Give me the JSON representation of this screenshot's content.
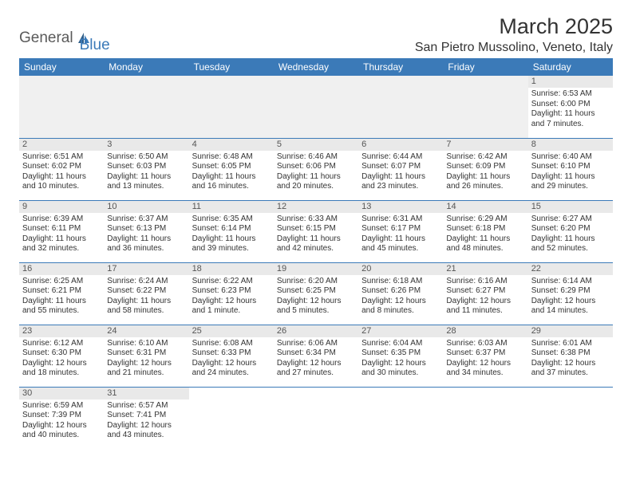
{
  "logo": {
    "text1": "General",
    "text2": "Blue"
  },
  "title": "March 2025",
  "location": "San Pietro Mussolino, Veneto, Italy",
  "colors": {
    "header_bg": "#3b7ab8",
    "header_text": "#ffffff",
    "daynum_bg": "#e9e9e9",
    "empty_bg": "#f0f0f0",
    "border": "#3b7ab8",
    "body_text": "#333333"
  },
  "weekdays": [
    "Sunday",
    "Monday",
    "Tuesday",
    "Wednesday",
    "Thursday",
    "Friday",
    "Saturday"
  ],
  "weeks": [
    [
      null,
      null,
      null,
      null,
      null,
      null,
      {
        "n": "1",
        "sr": "Sunrise: 6:53 AM",
        "ss": "Sunset: 6:00 PM",
        "dl": "Daylight: 11 hours and 7 minutes."
      }
    ],
    [
      {
        "n": "2",
        "sr": "Sunrise: 6:51 AM",
        "ss": "Sunset: 6:02 PM",
        "dl": "Daylight: 11 hours and 10 minutes."
      },
      {
        "n": "3",
        "sr": "Sunrise: 6:50 AM",
        "ss": "Sunset: 6:03 PM",
        "dl": "Daylight: 11 hours and 13 minutes."
      },
      {
        "n": "4",
        "sr": "Sunrise: 6:48 AM",
        "ss": "Sunset: 6:05 PM",
        "dl": "Daylight: 11 hours and 16 minutes."
      },
      {
        "n": "5",
        "sr": "Sunrise: 6:46 AM",
        "ss": "Sunset: 6:06 PM",
        "dl": "Daylight: 11 hours and 20 minutes."
      },
      {
        "n": "6",
        "sr": "Sunrise: 6:44 AM",
        "ss": "Sunset: 6:07 PM",
        "dl": "Daylight: 11 hours and 23 minutes."
      },
      {
        "n": "7",
        "sr": "Sunrise: 6:42 AM",
        "ss": "Sunset: 6:09 PM",
        "dl": "Daylight: 11 hours and 26 minutes."
      },
      {
        "n": "8",
        "sr": "Sunrise: 6:40 AM",
        "ss": "Sunset: 6:10 PM",
        "dl": "Daylight: 11 hours and 29 minutes."
      }
    ],
    [
      {
        "n": "9",
        "sr": "Sunrise: 6:39 AM",
        "ss": "Sunset: 6:11 PM",
        "dl": "Daylight: 11 hours and 32 minutes."
      },
      {
        "n": "10",
        "sr": "Sunrise: 6:37 AM",
        "ss": "Sunset: 6:13 PM",
        "dl": "Daylight: 11 hours and 36 minutes."
      },
      {
        "n": "11",
        "sr": "Sunrise: 6:35 AM",
        "ss": "Sunset: 6:14 PM",
        "dl": "Daylight: 11 hours and 39 minutes."
      },
      {
        "n": "12",
        "sr": "Sunrise: 6:33 AM",
        "ss": "Sunset: 6:15 PM",
        "dl": "Daylight: 11 hours and 42 minutes."
      },
      {
        "n": "13",
        "sr": "Sunrise: 6:31 AM",
        "ss": "Sunset: 6:17 PM",
        "dl": "Daylight: 11 hours and 45 minutes."
      },
      {
        "n": "14",
        "sr": "Sunrise: 6:29 AM",
        "ss": "Sunset: 6:18 PM",
        "dl": "Daylight: 11 hours and 48 minutes."
      },
      {
        "n": "15",
        "sr": "Sunrise: 6:27 AM",
        "ss": "Sunset: 6:20 PM",
        "dl": "Daylight: 11 hours and 52 minutes."
      }
    ],
    [
      {
        "n": "16",
        "sr": "Sunrise: 6:25 AM",
        "ss": "Sunset: 6:21 PM",
        "dl": "Daylight: 11 hours and 55 minutes."
      },
      {
        "n": "17",
        "sr": "Sunrise: 6:24 AM",
        "ss": "Sunset: 6:22 PM",
        "dl": "Daylight: 11 hours and 58 minutes."
      },
      {
        "n": "18",
        "sr": "Sunrise: 6:22 AM",
        "ss": "Sunset: 6:23 PM",
        "dl": "Daylight: 12 hours and 1 minute."
      },
      {
        "n": "19",
        "sr": "Sunrise: 6:20 AM",
        "ss": "Sunset: 6:25 PM",
        "dl": "Daylight: 12 hours and 5 minutes."
      },
      {
        "n": "20",
        "sr": "Sunrise: 6:18 AM",
        "ss": "Sunset: 6:26 PM",
        "dl": "Daylight: 12 hours and 8 minutes."
      },
      {
        "n": "21",
        "sr": "Sunrise: 6:16 AM",
        "ss": "Sunset: 6:27 PM",
        "dl": "Daylight: 12 hours and 11 minutes."
      },
      {
        "n": "22",
        "sr": "Sunrise: 6:14 AM",
        "ss": "Sunset: 6:29 PM",
        "dl": "Daylight: 12 hours and 14 minutes."
      }
    ],
    [
      {
        "n": "23",
        "sr": "Sunrise: 6:12 AM",
        "ss": "Sunset: 6:30 PM",
        "dl": "Daylight: 12 hours and 18 minutes."
      },
      {
        "n": "24",
        "sr": "Sunrise: 6:10 AM",
        "ss": "Sunset: 6:31 PM",
        "dl": "Daylight: 12 hours and 21 minutes."
      },
      {
        "n": "25",
        "sr": "Sunrise: 6:08 AM",
        "ss": "Sunset: 6:33 PM",
        "dl": "Daylight: 12 hours and 24 minutes."
      },
      {
        "n": "26",
        "sr": "Sunrise: 6:06 AM",
        "ss": "Sunset: 6:34 PM",
        "dl": "Daylight: 12 hours and 27 minutes."
      },
      {
        "n": "27",
        "sr": "Sunrise: 6:04 AM",
        "ss": "Sunset: 6:35 PM",
        "dl": "Daylight: 12 hours and 30 minutes."
      },
      {
        "n": "28",
        "sr": "Sunrise: 6:03 AM",
        "ss": "Sunset: 6:37 PM",
        "dl": "Daylight: 12 hours and 34 minutes."
      },
      {
        "n": "29",
        "sr": "Sunrise: 6:01 AM",
        "ss": "Sunset: 6:38 PM",
        "dl": "Daylight: 12 hours and 37 minutes."
      }
    ],
    [
      {
        "n": "30",
        "sr": "Sunrise: 6:59 AM",
        "ss": "Sunset: 7:39 PM",
        "dl": "Daylight: 12 hours and 40 minutes."
      },
      {
        "n": "31",
        "sr": "Sunrise: 6:57 AM",
        "ss": "Sunset: 7:41 PM",
        "dl": "Daylight: 12 hours and 43 minutes."
      },
      null,
      null,
      null,
      null,
      null
    ]
  ]
}
